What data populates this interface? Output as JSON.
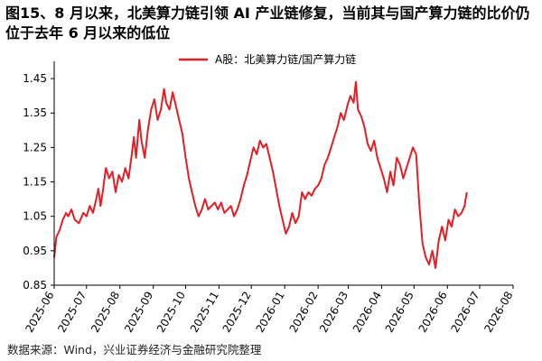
{
  "title": "图15、8 月以来，北美算力链引领 AI 产业链修复，当前其与国产算力链的比价仍位于去年 6 月以来的低位",
  "source": "数据来源：Wind，兴业证券经济与金融研究院整理",
  "colors": {
    "series": "#e31e24",
    "axis": "#000000",
    "text": "#000000"
  },
  "chart_data": {
    "type": "line",
    "series": [
      {
        "name": "A股：北美算力链/国产算力链",
        "color": "#e31e24",
        "points": [
          [
            "2025-06-01",
            0.93
          ],
          [
            "2025-06-03",
            0.99
          ],
          [
            "2025-06-06",
            1.01
          ],
          [
            "2025-06-09",
            1.04
          ],
          [
            "2025-06-12",
            1.06
          ],
          [
            "2025-06-14",
            1.05
          ],
          [
            "2025-06-17",
            1.07
          ],
          [
            "2025-06-20",
            1.04
          ],
          [
            "2025-06-24",
            1.03
          ],
          [
            "2025-06-28",
            1.06
          ],
          [
            "2025-07-01",
            1.05
          ],
          [
            "2025-07-04",
            1.08
          ],
          [
            "2025-07-07",
            1.06
          ],
          [
            "2025-07-10",
            1.1
          ],
          [
            "2025-07-12",
            1.13
          ],
          [
            "2025-07-14",
            1.08
          ],
          [
            "2025-07-16",
            1.12
          ],
          [
            "2025-07-19",
            1.19
          ],
          [
            "2025-07-22",
            1.16
          ],
          [
            "2025-07-25",
            1.18
          ],
          [
            "2025-07-28",
            1.12
          ],
          [
            "2025-07-31",
            1.17
          ],
          [
            "2025-08-03",
            1.15
          ],
          [
            "2025-08-06",
            1.19
          ],
          [
            "2025-08-09",
            1.16
          ],
          [
            "2025-08-12",
            1.23
          ],
          [
            "2025-08-14",
            1.28
          ],
          [
            "2025-08-16",
            1.22
          ],
          [
            "2025-08-19",
            1.33
          ],
          [
            "2025-08-21",
            1.27
          ],
          [
            "2025-08-24",
            1.22
          ],
          [
            "2025-08-27",
            1.3
          ],
          [
            "2025-08-30",
            1.36
          ],
          [
            "2025-09-02",
            1.39
          ],
          [
            "2025-09-05",
            1.33
          ],
          [
            "2025-09-08",
            1.36
          ],
          [
            "2025-09-11",
            1.42
          ],
          [
            "2025-09-13",
            1.38
          ],
          [
            "2025-09-16",
            1.36
          ],
          [
            "2025-09-19",
            1.41
          ],
          [
            "2025-09-22",
            1.37
          ],
          [
            "2025-09-25",
            1.33
          ],
          [
            "2025-09-28",
            1.29
          ],
          [
            "2025-10-01",
            1.22
          ],
          [
            "2025-10-04",
            1.16
          ],
          [
            "2025-10-07",
            1.12
          ],
          [
            "2025-10-10",
            1.08
          ],
          [
            "2025-10-13",
            1.05
          ],
          [
            "2025-10-16",
            1.07
          ],
          [
            "2025-10-19",
            1.1
          ],
          [
            "2025-10-22",
            1.07
          ],
          [
            "2025-10-25",
            1.08
          ],
          [
            "2025-10-28",
            1.09
          ],
          [
            "2025-10-31",
            1.07
          ],
          [
            "2025-11-03",
            1.09
          ],
          [
            "2025-11-06",
            1.06
          ],
          [
            "2025-11-09",
            1.07
          ],
          [
            "2025-11-12",
            1.08
          ],
          [
            "2025-11-15",
            1.05
          ],
          [
            "2025-11-18",
            1.07
          ],
          [
            "2025-11-21",
            1.1
          ],
          [
            "2025-11-24",
            1.14
          ],
          [
            "2025-11-27",
            1.17
          ],
          [
            "2025-11-30",
            1.21
          ],
          [
            "2025-12-03",
            1.25
          ],
          [
            "2025-12-06",
            1.23
          ],
          [
            "2025-12-09",
            1.27
          ],
          [
            "2025-12-12",
            1.25
          ],
          [
            "2025-12-15",
            1.26
          ],
          [
            "2025-12-18",
            1.22
          ],
          [
            "2025-12-21",
            1.18
          ],
          [
            "2025-12-24",
            1.13
          ],
          [
            "2025-12-27",
            1.08
          ],
          [
            "2025-12-30",
            1.04
          ],
          [
            "2026-01-02",
            1.0
          ],
          [
            "2026-01-05",
            1.02
          ],
          [
            "2026-01-08",
            1.06
          ],
          [
            "2026-01-11",
            1.03
          ],
          [
            "2026-01-14",
            1.05
          ],
          [
            "2026-01-17",
            1.12
          ],
          [
            "2026-01-20",
            1.1
          ],
          [
            "2026-01-23",
            1.12
          ],
          [
            "2026-01-26",
            1.11
          ],
          [
            "2026-01-29",
            1.13
          ],
          [
            "2026-02-01",
            1.14
          ],
          [
            "2026-02-04",
            1.16
          ],
          [
            "2026-02-07",
            1.2
          ],
          [
            "2026-02-10",
            1.22
          ],
          [
            "2026-02-13",
            1.25
          ],
          [
            "2026-02-16",
            1.28
          ],
          [
            "2026-02-19",
            1.31
          ],
          [
            "2026-02-22",
            1.35
          ],
          [
            "2026-02-25",
            1.33
          ],
          [
            "2026-02-28",
            1.37
          ],
          [
            "2026-03-03",
            1.4
          ],
          [
            "2026-03-06",
            1.38
          ],
          [
            "2026-03-08",
            1.44
          ],
          [
            "2026-03-10",
            1.36
          ],
          [
            "2026-03-13",
            1.34
          ],
          [
            "2026-03-16",
            1.31
          ],
          [
            "2026-03-19",
            1.26
          ],
          [
            "2026-03-22",
            1.24
          ],
          [
            "2026-03-25",
            1.27
          ],
          [
            "2026-03-28",
            1.22
          ],
          [
            "2026-03-31",
            1.19
          ],
          [
            "2026-04-03",
            1.16
          ],
          [
            "2026-04-06",
            1.12
          ],
          [
            "2026-04-09",
            1.18
          ],
          [
            "2026-04-12",
            1.14
          ],
          [
            "2026-04-15",
            1.22
          ],
          [
            "2026-04-18",
            1.2
          ],
          [
            "2026-04-21",
            1.16
          ],
          [
            "2026-04-24",
            1.19
          ],
          [
            "2026-04-27",
            1.22
          ],
          [
            "2026-04-30",
            1.25
          ],
          [
            "2026-05-03",
            1.23
          ],
          [
            "2026-05-06",
            1.08
          ],
          [
            "2026-05-09",
            0.97
          ],
          [
            "2026-05-12",
            0.93
          ],
          [
            "2026-05-15",
            0.91
          ],
          [
            "2026-05-18",
            0.95
          ],
          [
            "2026-05-21",
            0.9
          ],
          [
            "2026-05-24",
            0.98
          ],
          [
            "2026-05-27",
            1.02
          ],
          [
            "2026-05-30",
            0.98
          ],
          [
            "2026-06-02",
            1.04
          ],
          [
            "2026-06-05",
            1.02
          ],
          [
            "2026-06-08",
            1.07
          ],
          [
            "2026-06-11",
            1.05
          ],
          [
            "2026-06-14",
            1.06
          ],
          [
            "2026-06-17",
            1.08
          ],
          [
            "2026-06-19",
            1.12
          ]
        ]
      }
    ],
    "xticks": [
      "2025-06",
      "2025-07",
      "2025-08",
      "2025-09",
      "2025-10",
      "2025-11",
      "2025-12",
      "2026-01",
      "2026-02",
      "2026-03",
      "2026-04",
      "2026-05",
      "2026-06",
      "2026-07",
      "2026-08"
    ],
    "yticks": [
      "0.85",
      "0.95",
      "1.05",
      "1.15",
      "1.25",
      "1.35",
      "1.45"
    ],
    "ylim": [
      0.85,
      1.5
    ],
    "legend_position": "top-center",
    "grid": false
  }
}
